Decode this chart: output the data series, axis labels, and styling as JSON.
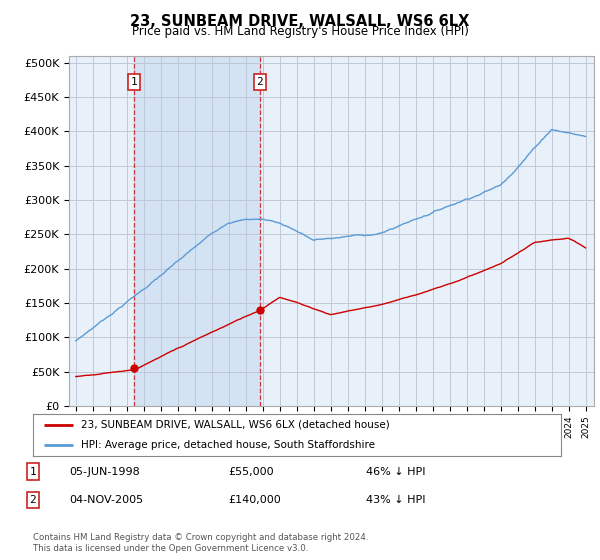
{
  "title": "23, SUNBEAM DRIVE, WALSALL, WS6 6LX",
  "subtitle": "Price paid vs. HM Land Registry's House Price Index (HPI)",
  "x_start_year": 1995,
  "x_end_year": 2025,
  "y_ticks": [
    0,
    50000,
    100000,
    150000,
    200000,
    250000,
    300000,
    350000,
    400000,
    450000,
    500000
  ],
  "y_labels": [
    "£0",
    "£50K",
    "£100K",
    "£150K",
    "£200K",
    "£250K",
    "£300K",
    "£350K",
    "£400K",
    "£450K",
    "£500K"
  ],
  "hpi_color": "#5b9bd5",
  "price_color": "#cc0000",
  "plot_bg_color": "#e8f0fa",
  "grid_color": "#c0c8d8",
  "sale1_year": 1998.44,
  "sale1_price": 55000,
  "sale2_year": 2005.84,
  "sale2_price": 140000,
  "legend_label_price": "23, SUNBEAM DRIVE, WALSALL, WS6 6LX (detached house)",
  "legend_label_hpi": "HPI: Average price, detached house, South Staffordshire",
  "note1_date": "05-JUN-1998",
  "note1_price": "£55,000",
  "note1_hpi": "46% ↓ HPI",
  "note2_date": "04-NOV-2005",
  "note2_price": "£140,000",
  "note2_hpi": "43% ↓ HPI",
  "footnote": "Contains HM Land Registry data © Crown copyright and database right 2024.\nThis data is licensed under the Open Government Licence v3.0."
}
